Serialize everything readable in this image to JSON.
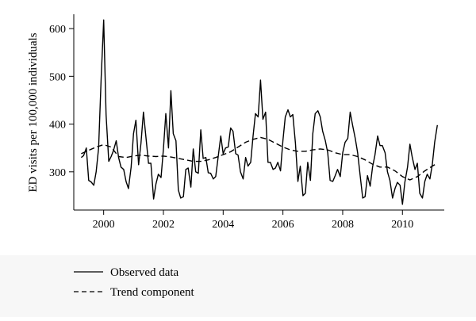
{
  "chart_data": {
    "type": "line",
    "title": "",
    "xlabel": "",
    "ylabel": "ED visits per 100,000 individuals",
    "xlim": [
      1999.0,
      2011.4
    ],
    "ylim": [
      220,
      630
    ],
    "x_ticks": [
      2000,
      2002,
      2004,
      2006,
      2008,
      2010
    ],
    "x_tick_labels": [
      "2000",
      "2002",
      "2004",
      "2006",
      "2008",
      "2010"
    ],
    "y_ticks": [
      300,
      400,
      500,
      600
    ],
    "y_tick_labels": [
      "300",
      "400",
      "500",
      "600"
    ],
    "grid": false,
    "legend_position": "bottom-left",
    "series": [
      {
        "name": "Observed data",
        "style": "solid",
        "color": "#000000",
        "points": [
          [
            1999.25,
            330
          ],
          [
            1999.33,
            334
          ],
          [
            1999.42,
            350
          ],
          [
            1999.5,
            282
          ],
          [
            1999.58,
            279
          ],
          [
            1999.67,
            272
          ],
          [
            1999.75,
            300
          ],
          [
            1999.83,
            350
          ],
          [
            1999.92,
            500
          ],
          [
            2000.0,
            618
          ],
          [
            2000.08,
            420
          ],
          [
            2000.17,
            322
          ],
          [
            2000.25,
            332
          ],
          [
            2000.33,
            345
          ],
          [
            2000.42,
            365
          ],
          [
            2000.5,
            330
          ],
          [
            2000.58,
            310
          ],
          [
            2000.67,
            305
          ],
          [
            2000.75,
            280
          ],
          [
            2000.83,
            265
          ],
          [
            2000.92,
            310
          ],
          [
            2001.0,
            380
          ],
          [
            2001.08,
            408
          ],
          [
            2001.17,
            315
          ],
          [
            2001.25,
            360
          ],
          [
            2001.33,
            425
          ],
          [
            2001.42,
            370
          ],
          [
            2001.5,
            318
          ],
          [
            2001.58,
            318
          ],
          [
            2001.67,
            243
          ],
          [
            2001.75,
            275
          ],
          [
            2001.83,
            295
          ],
          [
            2001.92,
            288
          ],
          [
            2002.0,
            348
          ],
          [
            2002.08,
            422
          ],
          [
            2002.17,
            350
          ],
          [
            2002.25,
            470
          ],
          [
            2002.33,
            380
          ],
          [
            2002.42,
            365
          ],
          [
            2002.5,
            262
          ],
          [
            2002.58,
            245
          ],
          [
            2002.67,
            248
          ],
          [
            2002.75,
            305
          ],
          [
            2002.83,
            308
          ],
          [
            2002.92,
            268
          ],
          [
            2003.0,
            348
          ],
          [
            2003.08,
            300
          ],
          [
            2003.17,
            297
          ],
          [
            2003.25,
            388
          ],
          [
            2003.33,
            328
          ],
          [
            2003.42,
            330
          ],
          [
            2003.5,
            298
          ],
          [
            2003.58,
            297
          ],
          [
            2003.67,
            285
          ],
          [
            2003.75,
            290
          ],
          [
            2003.83,
            330
          ],
          [
            2003.92,
            375
          ],
          [
            2004.0,
            338
          ],
          [
            2004.08,
            350
          ],
          [
            2004.17,
            352
          ],
          [
            2004.25,
            392
          ],
          [
            2004.33,
            385
          ],
          [
            2004.42,
            338
          ],
          [
            2004.5,
            335
          ],
          [
            2004.58,
            300
          ],
          [
            2004.67,
            285
          ],
          [
            2004.75,
            330
          ],
          [
            2004.83,
            312
          ],
          [
            2004.92,
            320
          ],
          [
            2005.0,
            375
          ],
          [
            2005.08,
            422
          ],
          [
            2005.17,
            415
          ],
          [
            2005.25,
            492
          ],
          [
            2005.33,
            410
          ],
          [
            2005.42,
            425
          ],
          [
            2005.5,
            320
          ],
          [
            2005.58,
            320
          ],
          [
            2005.67,
            305
          ],
          [
            2005.75,
            308
          ],
          [
            2005.83,
            320
          ],
          [
            2005.92,
            302
          ],
          [
            2006.0,
            365
          ],
          [
            2006.08,
            415
          ],
          [
            2006.17,
            430
          ],
          [
            2006.25,
            415
          ],
          [
            2006.33,
            420
          ],
          [
            2006.42,
            360
          ],
          [
            2006.5,
            280
          ],
          [
            2006.58,
            312
          ],
          [
            2006.67,
            250
          ],
          [
            2006.75,
            255
          ],
          [
            2006.83,
            320
          ],
          [
            2006.92,
            282
          ],
          [
            2007.0,
            380
          ],
          [
            2007.08,
            422
          ],
          [
            2007.17,
            428
          ],
          [
            2007.25,
            415
          ],
          [
            2007.33,
            385
          ],
          [
            2007.42,
            365
          ],
          [
            2007.5,
            340
          ],
          [
            2007.58,
            282
          ],
          [
            2007.67,
            280
          ],
          [
            2007.75,
            292
          ],
          [
            2007.83,
            305
          ],
          [
            2007.92,
            290
          ],
          [
            2008.0,
            340
          ],
          [
            2008.08,
            362
          ],
          [
            2008.17,
            370
          ],
          [
            2008.25,
            425
          ],
          [
            2008.33,
            398
          ],
          [
            2008.42,
            370
          ],
          [
            2008.5,
            340
          ],
          [
            2008.58,
            295
          ],
          [
            2008.67,
            245
          ],
          [
            2008.75,
            248
          ],
          [
            2008.83,
            292
          ],
          [
            2008.92,
            270
          ],
          [
            2009.0,
            310
          ],
          [
            2009.08,
            335
          ],
          [
            2009.17,
            375
          ],
          [
            2009.25,
            355
          ],
          [
            2009.33,
            355
          ],
          [
            2009.42,
            340
          ],
          [
            2009.5,
            300
          ],
          [
            2009.58,
            282
          ],
          [
            2009.67,
            245
          ],
          [
            2009.75,
            265
          ],
          [
            2009.83,
            278
          ],
          [
            2009.92,
            272
          ],
          [
            2010.0,
            232
          ],
          [
            2010.08,
            278
          ],
          [
            2010.17,
            310
          ],
          [
            2010.25,
            358
          ],
          [
            2010.33,
            330
          ],
          [
            2010.42,
            305
          ],
          [
            2010.5,
            318
          ],
          [
            2010.58,
            255
          ],
          [
            2010.67,
            245
          ],
          [
            2010.75,
            280
          ],
          [
            2010.83,
            295
          ],
          [
            2010.92,
            285
          ],
          [
            2011.0,
            315
          ],
          [
            2011.08,
            362
          ],
          [
            2011.17,
            398
          ]
        ]
      },
      {
        "name": "Trend component",
        "style": "dashed",
        "color": "#000000",
        "points": [
          [
            1999.25,
            338
          ],
          [
            1999.5,
            345
          ],
          [
            1999.75,
            352
          ],
          [
            2000.0,
            357
          ],
          [
            2000.25,
            352
          ],
          [
            2000.5,
            332
          ],
          [
            2000.75,
            330
          ],
          [
            2001.0,
            333
          ],
          [
            2001.25,
            335
          ],
          [
            2001.5,
            333
          ],
          [
            2001.75,
            332
          ],
          [
            2002.0,
            333
          ],
          [
            2002.25,
            331
          ],
          [
            2002.5,
            328
          ],
          [
            2002.75,
            325
          ],
          [
            2003.0,
            322
          ],
          [
            2003.25,
            322
          ],
          [
            2003.5,
            325
          ],
          [
            2003.75,
            330
          ],
          [
            2004.0,
            336
          ],
          [
            2004.25,
            342
          ],
          [
            2004.5,
            352
          ],
          [
            2004.75,
            362
          ],
          [
            2005.0,
            368
          ],
          [
            2005.25,
            372
          ],
          [
            2005.5,
            368
          ],
          [
            2005.75,
            360
          ],
          [
            2006.0,
            352
          ],
          [
            2006.25,
            346
          ],
          [
            2006.5,
            343
          ],
          [
            2006.75,
            343
          ],
          [
            2007.0,
            346
          ],
          [
            2007.25,
            348
          ],
          [
            2007.5,
            346
          ],
          [
            2007.75,
            340
          ],
          [
            2008.0,
            336
          ],
          [
            2008.25,
            336
          ],
          [
            2008.5,
            332
          ],
          [
            2008.75,
            325
          ],
          [
            2009.0,
            316
          ],
          [
            2009.25,
            310
          ],
          [
            2009.5,
            310
          ],
          [
            2009.75,
            302
          ],
          [
            2010.0,
            290
          ],
          [
            2010.25,
            283
          ],
          [
            2010.5,
            290
          ],
          [
            2010.75,
            302
          ],
          [
            2011.0,
            312
          ],
          [
            2011.17,
            318
          ]
        ]
      }
    ]
  }
}
